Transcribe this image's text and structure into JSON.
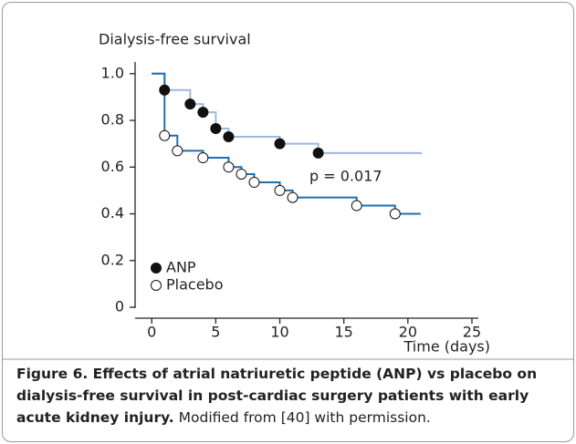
{
  "chart_data": {
    "type": "step",
    "y_label": "Dialysis-free survival",
    "x_label": "Time (days)",
    "annotation": "p = 0.017",
    "series": [
      {
        "name": "ANP",
        "color": "#9db8de",
        "marker": "filled",
        "x": [
          0,
          1,
          3,
          4,
          5,
          6,
          10,
          13,
          21
        ],
        "values": [
          1.0,
          0.93,
          0.87,
          0.835,
          0.765,
          0.73,
          0.7,
          0.66,
          0.655
        ]
      },
      {
        "name": "Placebo",
        "color": "#1f6fb0",
        "marker": "open",
        "x": [
          0,
          1,
          2,
          4,
          6,
          7,
          8,
          10,
          11,
          16,
          19,
          21
        ],
        "values": [
          1.0,
          0.735,
          0.67,
          0.64,
          0.6,
          0.57,
          0.535,
          0.5,
          0.47,
          0.435,
          0.4,
          0.4
        ]
      }
    ],
    "xlim": [
      -1.3,
      25.5
    ],
    "ylim": [
      0,
      1.05
    ],
    "xticks": [
      0,
      5,
      10,
      15,
      20,
      25
    ],
    "yticks": [
      0,
      0.2,
      0.4,
      0.6,
      0.8,
      {
        "value": 1,
        "label": "1.0"
      }
    ]
  },
  "caption": {
    "bold": "Figure 6. Effects of atrial natriuretic peptide (ANP) vs placebo on dialysis-free survival in post-cardiac surgery patients with early acute kidney injury.",
    "text": "Modified from [40] with permission."
  }
}
